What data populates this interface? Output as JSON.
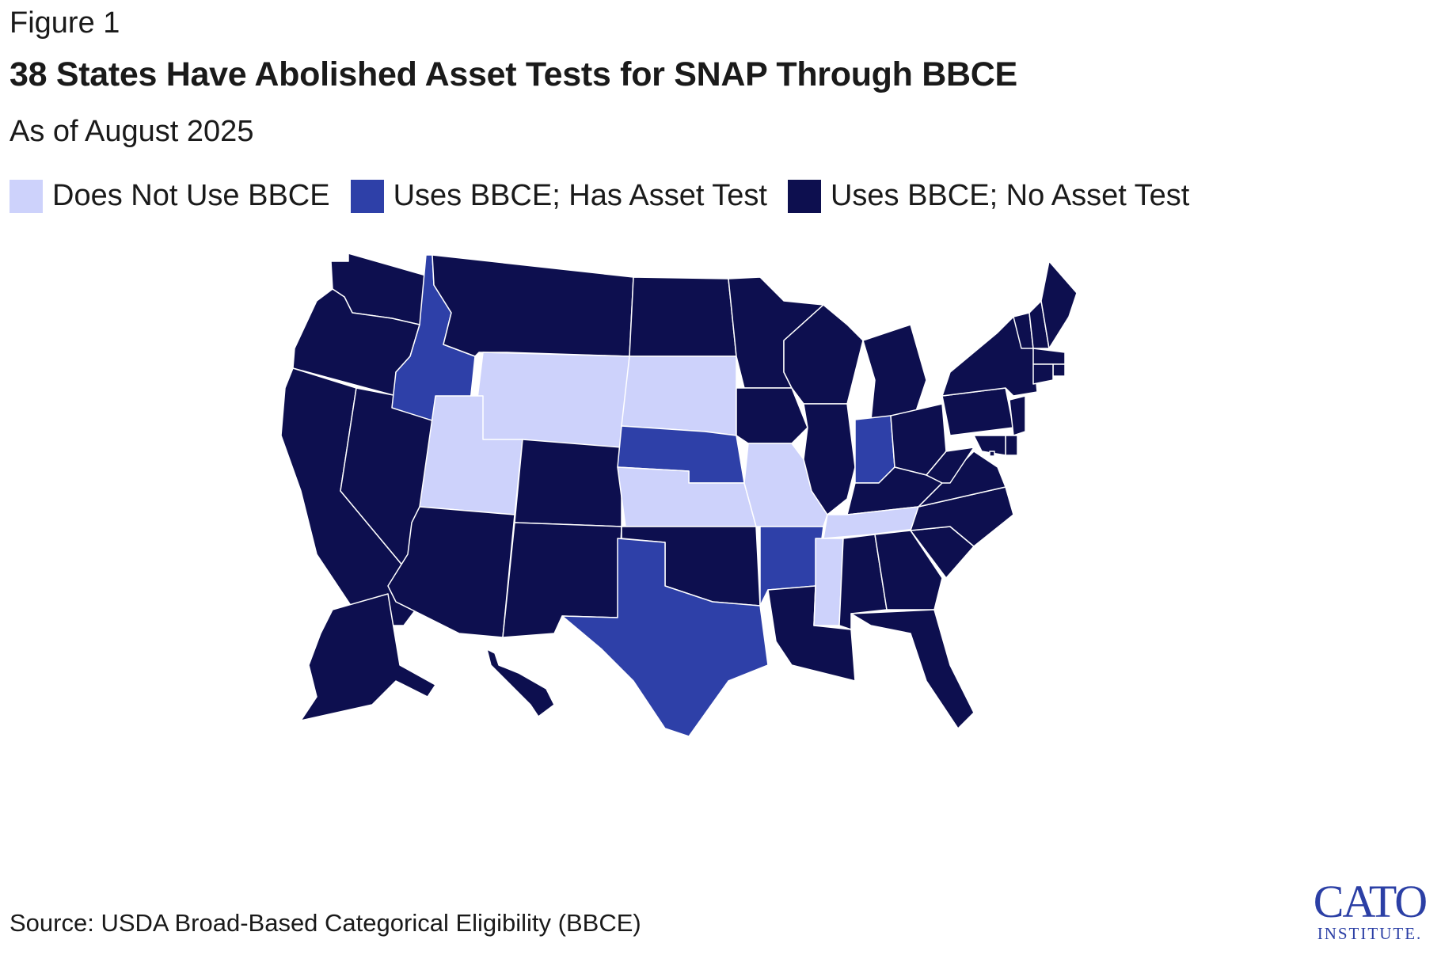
{
  "figure_label": "Figure 1",
  "title": "38 States Have Abolished Asset Tests for SNAP Through BBCE",
  "subtitle": "As of August 2025",
  "legend": [
    {
      "key": "none",
      "label": "Does Not Use BBCE",
      "color": "#cdd2fb"
    },
    {
      "key": "asset",
      "label": "Uses BBCE; Has Asset Test",
      "color": "#2e40a8"
    },
    {
      "key": "noasset",
      "label": "Uses BBCE; No Asset Test",
      "color": "#0d0f4f"
    }
  ],
  "source": "Source: USDA Broad-Based Categorical Eligibility (BBCE)",
  "logo": {
    "main": "CATO",
    "sub": "INSTITUTE."
  },
  "map_data": {
    "none": [
      "Wyoming",
      "South Dakota",
      "Utah",
      "Kansas",
      "Missouri",
      "Tennessee",
      "Mississippi"
    ],
    "asset": [
      "Idaho",
      "Nebraska",
      "Texas",
      "Arkansas",
      "Indiana"
    ],
    "noasset": [
      "Washington",
      "Oregon",
      "California",
      "Nevada",
      "Arizona",
      "Montana",
      "Colorado",
      "New Mexico",
      "North Dakota",
      "Oklahoma",
      "Minnesota",
      "Iowa",
      "Louisiana",
      "Wisconsin",
      "Illinois",
      "Michigan",
      "Kentucky",
      "Alabama",
      "Ohio",
      "Georgia",
      "Florida",
      "South Carolina",
      "North Carolina",
      "Virginia",
      "West Virginia",
      "Pennsylvania",
      "New York",
      "Vermont",
      "New Hampshire",
      "Maine",
      "Massachusetts",
      "Rhode Island",
      "Connecticut",
      "New Jersey",
      "Delaware",
      "Maryland",
      "District of Columbia",
      "Alaska",
      "Hawaii"
    ]
  }
}
